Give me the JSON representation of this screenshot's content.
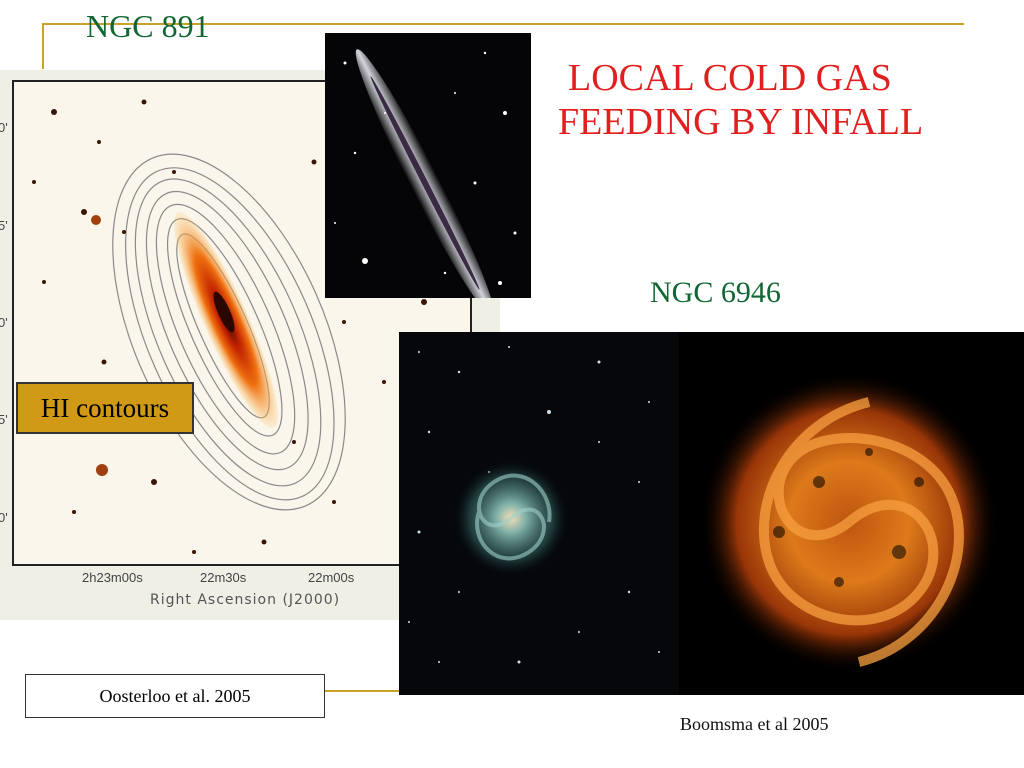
{
  "slide": {
    "ngc891_title": "NGC 891",
    "main_title_line1": "LOCAL COLD GAS",
    "main_title_line2": "FEEDING BY INFALL",
    "ngc6946_title": "NGC 6946",
    "hi_label": "HI contours",
    "citation_left": "Oosterloo et al.  2005",
    "citation_right": "Boomsma et al 2005"
  },
  "hi_figure": {
    "x_ticks": [
      "2h23m00s",
      "22m30s",
      "22m00s"
    ],
    "x_axis_label": "Right Ascension (J2000)",
    "y_ticks": [
      "0'",
      "5'",
      "0'",
      "5'",
      "0'"
    ]
  },
  "colors": {
    "accent_gold": "#c9a227",
    "title_red": "#e0201e",
    "title_green": "#116633",
    "label_fill": "#d09a16"
  }
}
